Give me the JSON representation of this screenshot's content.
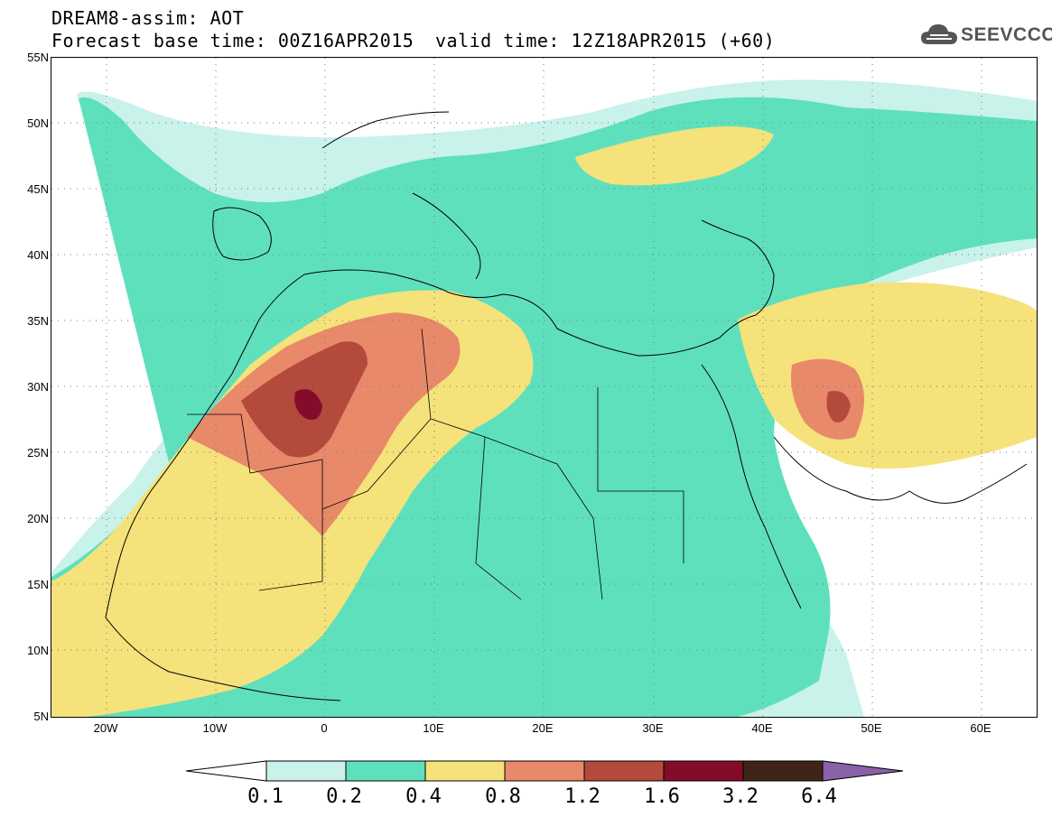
{
  "header": {
    "title": "DREAM8-assim: AOT",
    "base_time": "Forecast base time: 00Z16APR2015",
    "valid_time": "valid time: 12Z18APR2015 (+60)"
  },
  "logo": {
    "text": "SEEVCCC",
    "icon": "cloud-icon"
  },
  "map": {
    "lat_labels": [
      "55N",
      "50N",
      "45N",
      "40N",
      "35N",
      "30N",
      "25N",
      "20N",
      "15N",
      "10N",
      "5N"
    ],
    "lon_labels": [
      "20W",
      "10W",
      "0",
      "10E",
      "20E",
      "30E",
      "40E",
      "50E",
      "60E"
    ],
    "extent": {
      "lon_min": -25,
      "lon_max": 65,
      "lat_min": 5,
      "lat_max": 55
    }
  },
  "legend": {
    "levels": [
      "0.1",
      "0.2",
      "0.4",
      "0.8",
      "1.2",
      "1.6",
      "3.2",
      "6.4"
    ],
    "colors": [
      "#ffffff",
      "#c9f2ea",
      "#5fe0bd",
      "#f5e27a",
      "#e8896a",
      "#b34a3c",
      "#850b2a",
      "#3f2418",
      "#8a62a8"
    ]
  }
}
